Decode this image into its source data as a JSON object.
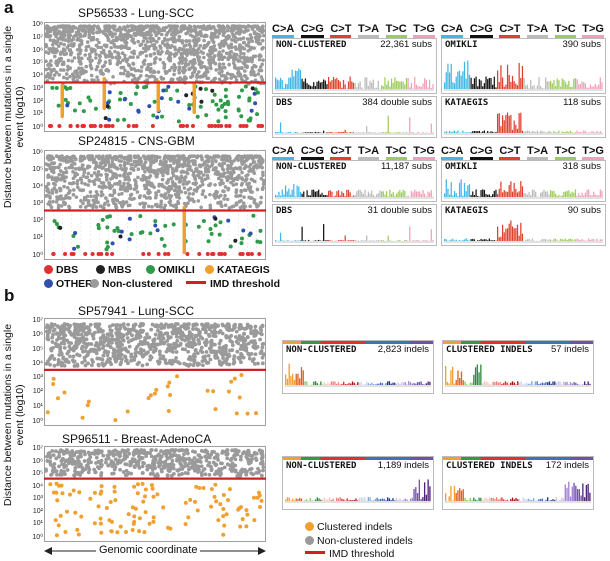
{
  "panel_a": {
    "label": "a",
    "y_axis_label_line1": "Distance between mutations in a single",
    "y_axis_label_line2": "event (log10)",
    "plots": [
      {
        "title": "SP56533 - Lung-SCC",
        "yticks": [
          "10⁸",
          "10⁷",
          "10⁶",
          "10⁵",
          "10⁴",
          "10³",
          "10²",
          "10¹",
          "10⁰"
        ]
      },
      {
        "title": "SP24815 - CNS-GBM",
        "yticks": [
          "10⁶",
          "10⁵",
          "10⁴",
          "10³",
          "10²",
          "10¹",
          "10⁰"
        ]
      }
    ],
    "legend": {
      "dbs": "DBS",
      "mbs": "MBS",
      "omikli": "OMIKLI",
      "kataegis": "KATAEGIS",
      "other": "OTHER",
      "nonclustered": "Non-clustered",
      "imd": "IMD threshold"
    },
    "mutation_types": [
      "C>A",
      "C>G",
      "C>T",
      "T>A",
      "T>C",
      "T>G"
    ],
    "spectra": [
      {
        "title": "NON-CLUSTERED",
        "count": "22,361 subs"
      },
      {
        "title": "OMIKLI",
        "count": "390 subs"
      },
      {
        "title": "DBS",
        "count": "384 double subs"
      },
      {
        "title": "KATAEGIS",
        "count": "118 subs"
      },
      {
        "title": "NON-CLUSTERED",
        "count": "11,187 subs"
      },
      {
        "title": "OMIKLI",
        "count": "318 subs"
      },
      {
        "title": "DBS",
        "count": "31 double subs"
      },
      {
        "title": "KATAEGIS",
        "count": "90 subs"
      }
    ]
  },
  "panel_b": {
    "label": "b",
    "y_axis_label_line1": "Distance between mutations in a single",
    "y_axis_label_line2": "event (log10)",
    "plots": [
      {
        "title": "SP57941 - Lung-SCC",
        "yticks": [
          "10⁷",
          "10⁶",
          "10⁵",
          "10⁴",
          "10³",
          "10²",
          "10¹",
          "10⁰"
        ]
      },
      {
        "title": "SP96511 - Breast-AdenoCA",
        "yticks": [
          "10⁷",
          "10⁶",
          "10⁵",
          "10⁴",
          "10³",
          "10²",
          "10¹",
          "10⁰"
        ]
      }
    ],
    "x_axis_label": "Genomic coordinate",
    "indel_spectra": [
      {
        "title": "NON-CLUSTERED",
        "count": "2,823 indels"
      },
      {
        "title": "CLUSTERED INDELS",
        "count": "57 indels"
      },
      {
        "title": "NON-CLUSTERED",
        "count": "1,189 indels"
      },
      {
        "title": "CLUSTERED INDELS",
        "count": "172 indels"
      }
    ],
    "legend": {
      "clustered": "Clustered indels",
      "nonclustered": "Non-clustered indels",
      "imd": "IMD threshold"
    }
  },
  "colors": {
    "dbs": "#e03030",
    "mbs": "#222222",
    "omikli": "#2e9a4a",
    "kataegis": "#f0a030",
    "other": "#3050b0",
    "nonclustered": "#9a9a9a",
    "imd": "#d02020",
    "ca": "#3fb7e8",
    "cg": "#111111",
    "ct": "#e0402c",
    "ta": "#bbbbbb",
    "tc": "#9ccc60",
    "tg": "#f0a0b8"
  }
}
